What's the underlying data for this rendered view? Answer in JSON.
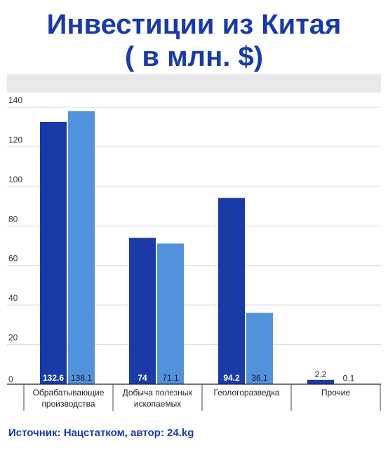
{
  "title": {
    "line1": "Инвестиции из Китая",
    "line2": "( в млн. $)"
  },
  "source": "Источник: Нацстатком, автор: 24.kg",
  "colors": {
    "title": "#1a3aa8",
    "series_a": "#1a3aa8",
    "series_b": "#5292dd",
    "grid": "#d9d9d9",
    "band": "#e9e9e9"
  },
  "chart_data": {
    "type": "bar",
    "categories": [
      [
        "Обрабатывающие",
        "производства"
      ],
      [
        "Добыча полезных",
        "ископаемых"
      ],
      [
        "Геологоразведка"
      ],
      [
        "Прочие"
      ]
    ],
    "series": [
      {
        "values": [
          132.6,
          74,
          94.2,
          2.2
        ],
        "labels": [
          "132.6",
          "74",
          "94.2",
          "2.2"
        ]
      },
      {
        "values": [
          138.1,
          71.1,
          36.1,
          0.1
        ],
        "labels": [
          "138.1",
          "71.1",
          "36.1",
          "0.1"
        ]
      }
    ],
    "yticks": [
      0,
      20,
      40,
      60,
      80,
      100,
      120,
      140
    ],
    "ylim": [
      0,
      140
    ],
    "grid": true
  }
}
